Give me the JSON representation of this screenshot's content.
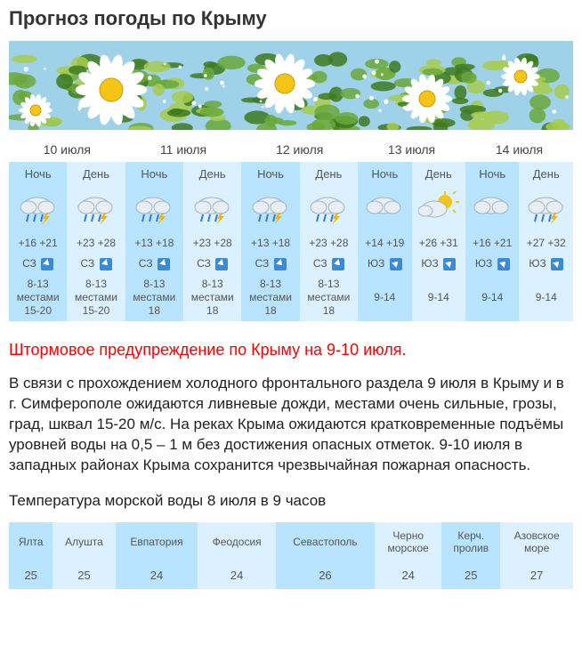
{
  "title": "Прогноз погоды по Крыму",
  "banner": {
    "sky": "#9fd2e8",
    "grass1": "#3e7a1e",
    "grass2": "#6aa838",
    "grass3": "#a7cc4e",
    "petal": "#ffffff",
    "center": "#f4c514"
  },
  "labels": {
    "night": "Ночь",
    "day": "День"
  },
  "forecast": {
    "dates": [
      "10 июля",
      "11 июля",
      "12 июля",
      "13 июля",
      "14 июля"
    ],
    "columns": [
      {
        "tod": "night",
        "icon": "thunder-rain",
        "temp": "+16 +21",
        "wind_dir": "СЗ",
        "wind_arrow": "se",
        "wind_speed": "8-13\nместами\n15-20"
      },
      {
        "tod": "day",
        "icon": "thunder-rain",
        "temp": "+23 +28",
        "wind_dir": "СЗ",
        "wind_arrow": "se",
        "wind_speed": "8-13\nместами\n15-20"
      },
      {
        "tod": "night",
        "icon": "thunder-rain",
        "temp": "+13 +18",
        "wind_dir": "СЗ",
        "wind_arrow": "se",
        "wind_speed": "8-13\nместами\n18"
      },
      {
        "tod": "day",
        "icon": "thunder-rain",
        "temp": "+23 +28",
        "wind_dir": "СЗ",
        "wind_arrow": "se",
        "wind_speed": "8-13\nместами\n18"
      },
      {
        "tod": "night",
        "icon": "thunder-rain",
        "temp": "+13 +18",
        "wind_dir": "СЗ",
        "wind_arrow": "se",
        "wind_speed": "8-13\nместами\n18"
      },
      {
        "tod": "day",
        "icon": "thunder-rain",
        "temp": "+23 +28",
        "wind_dir": "СЗ",
        "wind_arrow": "se",
        "wind_speed": "8-13\nместами\n18"
      },
      {
        "tod": "night",
        "icon": "cloud",
        "temp": "+14 +19",
        "wind_dir": "ЮЗ",
        "wind_arrow": "ne",
        "wind_speed": "9-14"
      },
      {
        "tod": "day",
        "icon": "sun-cloud",
        "temp": "+26 +31",
        "wind_dir": "ЮЗ",
        "wind_arrow": "ne",
        "wind_speed": "9-14"
      },
      {
        "tod": "night",
        "icon": "cloud",
        "temp": "+16 +21",
        "wind_dir": "ЮЗ",
        "wind_arrow": "ne",
        "wind_speed": "9-14"
      },
      {
        "tod": "day",
        "icon": "thunder-rain",
        "temp": "+27 +32",
        "wind_dir": "ЮЗ",
        "wind_arrow": "ne",
        "wind_speed": "9-14"
      }
    ]
  },
  "warning": "Штормовое предупреждение по Крыму на 9-10 июля.",
  "body": "В связи с прохождением холодного фронтального раздела 9 июля в Крыму и в г. Симферополе ожидаются ливневые дожди, местами очень сильные, грозы, град, шквал 15-20 м/с. На реках Крыма ожидаются кратковременные подъёмы уровней воды на 0,5 – 1 м без достижения опасных отметок. 9-10 июля в западных районах Крыма сохранится чрезвычайная пожарная опасность.",
  "sea_title": "Температура морской воды 8 июля в 9 часов",
  "sea": {
    "headers": [
      "Ялта",
      "Алушта",
      "Евпатория",
      "Феодосия",
      "Севастополь",
      "Черно\nморское",
      "Керч.\nпролив",
      "Азовское\nморе"
    ],
    "values": [
      "25",
      "25",
      "24",
      "24",
      "26",
      "24",
      "25",
      "27"
    ]
  },
  "colors": {
    "night_bg": "#b8e4ff",
    "day_bg": "#dbf1ff"
  }
}
